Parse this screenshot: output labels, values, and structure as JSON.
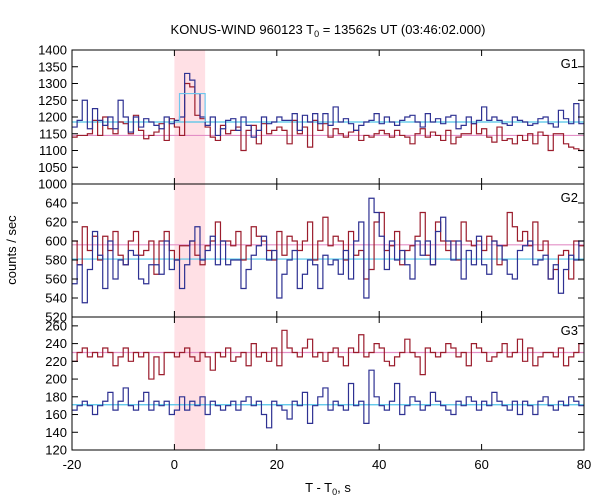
{
  "chart_data": {
    "type": "line",
    "title": "KONUS-WIND 960123 T0 = 13562s UT (03:46:02.000)",
    "title_parts": {
      "pre": "KONUS-WIND 960123 T",
      "sub": "0",
      "post": " = 13562s UT (03:46:02.000)"
    },
    "xlabel": "T - T0, s",
    "xlabel_parts": {
      "pre": "T - T",
      "sub": "0",
      "post": ", s"
    },
    "ylabel": "counts / sec",
    "xlim": [
      -20,
      80
    ],
    "x_ticks": [
      -20,
      0,
      20,
      40,
      60,
      80
    ],
    "highlight_interval": [
      0,
      6
    ],
    "step": 1.0,
    "colors": {
      "red_series": "#9b1c2c",
      "blue_series": "#2e3192",
      "red_level": "#e38fc6",
      "blue_level": "#4fc3e8",
      "highlight": "#ffd6dc",
      "burst_box": "#6ec6ee"
    },
    "panels": [
      {
        "label": "G1",
        "ylim": [
          1000,
          1400
        ],
        "y_ticks": [
          1000,
          1050,
          1100,
          1150,
          1200,
          1250,
          1300,
          1350,
          1400
        ],
        "levels": {
          "red": 1145,
          "blue": 1185
        },
        "burst_box": {
          "x": [
            1,
            6
          ],
          "y": 1270
        },
        "series": [
          {
            "color_key": "red",
            "x_start": -20,
            "values": [
              1140,
              1145,
              1145,
              1150,
              1190,
              1145,
              1200,
              1165,
              1150,
              1185,
              1180,
              1150,
              1205,
              1160,
              1135,
              1145,
              1155,
              1180,
              1130,
              1195,
              1170,
              1145,
              1300,
              1290,
              1205,
              1195,
              1170,
              1140,
              1130,
              1175,
              1150,
              1160,
              1170,
              1100,
              1160,
              1175,
              1120,
              1180,
              1150,
              1160,
              1170,
              1160,
              1120,
              1190,
              1150,
              1170,
              1110,
              1190,
              1160,
              1180,
              1140,
              1165,
              1150,
              1140,
              1155,
              1160,
              1130,
              1145,
              1140,
              1150,
              1160,
              1150,
              1140,
              1160,
              1145,
              1140,
              1120,
              1150,
              1165,
              1140,
              1155,
              1145,
              1130,
              1160,
              1120,
              1140,
              1150,
              1150,
              1180,
              1150,
              1165,
              1140,
              1125,
              1170,
              1130,
              1135,
              1120,
              1145,
              1130,
              1150,
              1120,
              1155,
              1145,
              1100,
              1150,
              1150,
              1120,
              1110,
              1105,
              1100
            ]
          },
          {
            "color_key": "blue",
            "x_start": -20,
            "values": [
              1170,
              1190,
              1250,
              1165,
              1225,
              1190,
              1175,
              1200,
              1165,
              1250,
              1200,
              1155,
              1200,
              1170,
              1195,
              1185,
              1175,
              1165,
              1200,
              1180,
              1190,
              1200,
              1330,
              1310,
              1270,
              1200,
              1175,
              1200,
              1145,
              1165,
              1190,
              1195,
              1160,
              1200,
              1175,
              1140,
              1160,
              1200,
              1180,
              1185,
              1200,
              1190,
              1190,
              1210,
              1160,
              1205,
              1185,
              1210,
              1180,
              1210,
              1175,
              1230,
              1185,
              1195,
              1180,
              1160,
              1175,
              1185,
              1190,
              1210,
              1180,
              1200,
              1185,
              1175,
              1190,
              1200,
              1205,
              1185,
              1170,
              1210,
              1185,
              1195,
              1180,
              1200,
              1205,
              1165,
              1175,
              1200,
              1180,
              1190,
              1230,
              1190,
              1200,
              1190,
              1180,
              1175,
              1200,
              1190,
              1185,
              1175,
              1180,
              1195,
              1200,
              1180,
              1170,
              1220,
              1195,
              1180,
              1240,
              1180
            ]
          }
        ]
      },
      {
        "label": "G2",
        "ylim": [
          520,
          660
        ],
        "y_ticks": [
          520,
          540,
          560,
          580,
          600,
          620,
          640
        ],
        "levels": {
          "red": 596,
          "blue": 581
        },
        "series": [
          {
            "color_key": "red",
            "x_start": -20,
            "values": [
              600,
              575,
              615,
              590,
              605,
              580,
              605,
              590,
              610,
              585,
              575,
              600,
              610,
              585,
              590,
              600,
              565,
              600,
              610,
              590,
              580,
              595,
              595,
              600,
              585,
              575,
              595,
              600,
              620,
              600,
              600,
              595,
              610,
              580,
              595,
              615,
              605,
              600,
              590,
              580,
              610,
              585,
              605,
              600,
              590,
              600,
              620,
              580,
              600,
              625,
              595,
              605,
              600,
              580,
              610,
              585,
              590,
              560,
              570,
              620,
              630,
              590,
              595,
              610,
              575,
              590,
              595,
              605,
              630,
              585,
              575,
              620,
              600,
              590,
              600,
              580,
              620,
              600,
              595,
              600,
              590,
              605,
              600,
              575,
              595,
              630,
              615,
              600,
              610,
              595,
              620,
              590,
              600,
              560,
              570,
              585,
              590,
              560,
              600,
              595
            ]
          },
          {
            "color_key": "blue",
            "x_start": -20,
            "values": [
              555,
              575,
              535,
              570,
              610,
              585,
              550,
              600,
              560,
              580,
              575,
              590,
              585,
              560,
              555,
              575,
              575,
              565,
              600,
              570,
              580,
              550,
              575,
              600,
              615,
              580,
              590,
              605,
              575,
              600,
              575,
              580,
              580,
              550,
              570,
              585,
              595,
              605,
              580,
              590,
              540,
              565,
              580,
              590,
              550,
              565,
              580,
              575,
              550,
              585,
              575,
              580,
              565,
              590,
              560,
              600,
              620,
              540,
              645,
              630,
              605,
              570,
              600,
              580,
              590,
              575,
              560,
              600,
              585,
              600,
              575,
              610,
              625,
              600,
              580,
              600,
              560,
              590,
              575,
              605,
              575,
              565,
              600,
              595,
              580,
              565,
              560,
              590,
              595,
              600,
              575,
              580,
              585,
              560,
              575,
              545,
              570,
              585,
              580,
              600
            ]
          }
        ]
      },
      {
        "label": "G3",
        "ylim": [
          120,
          270
        ],
        "y_ticks": [
          120,
          140,
          160,
          180,
          200,
          220,
          240,
          260
        ],
        "levels": {
          "red": 230,
          "blue": 171
        },
        "series": [
          {
            "color_key": "red",
            "x_start": -20,
            "values": [
              220,
              230,
              235,
              225,
              230,
              225,
              235,
              230,
              215,
              225,
              235,
              220,
              230,
              225,
              230,
              200,
              225,
              205,
              230,
              230,
              225,
              230,
              235,
              225,
              220,
              230,
              225,
              210,
              230,
              225,
              235,
              220,
              225,
              230,
              215,
              240,
              225,
              230,
              220,
              235,
              215,
              255,
              235,
              230,
              225,
              235,
              245,
              225,
              230,
              220,
              230,
              235,
              225,
              215,
              235,
              230,
              250,
              225,
              230,
              240,
              235,
              220,
              215,
              225,
              230,
              245,
              230,
              225,
              205,
              235,
              230,
              225,
              230,
              240,
              235,
              225,
              230,
              215,
              240,
              235,
              230,
              220,
              225,
              230,
              240,
              225,
              230,
              245,
              220,
              235,
              215,
              225,
              230,
              230,
              225,
              235,
              215,
              225,
              230,
              240
            ]
          },
          {
            "color_key": "blue",
            "x_start": -20,
            "values": [
              165,
              170,
              175,
              170,
              160,
              170,
              175,
              185,
              165,
              175,
              190,
              170,
              165,
              175,
              185,
              165,
              175,
              170,
              175,
              160,
              165,
              180,
              165,
              175,
              170,
              180,
              160,
              175,
              170,
              165,
              170,
              175,
              165,
              175,
              180,
              170,
              175,
              160,
              145,
              175,
              170,
              165,
              155,
              175,
              170,
              185,
              150,
              170,
              180,
              190,
              165,
              175,
              170,
              165,
              195,
              170,
              175,
              150,
              210,
              180,
              170,
              165,
              175,
              195,
              160,
              170,
              180,
              175,
              165,
              170,
              185,
              175,
              170,
              165,
              160,
              175,
              170,
              180,
              175,
              165,
              175,
              170,
              185,
              175,
              170,
              165,
              175,
              160,
              175,
              170,
              160,
              175,
              180,
              170,
              165,
              175,
              170,
              180,
              175,
              170
            ]
          }
        ]
      }
    ]
  }
}
